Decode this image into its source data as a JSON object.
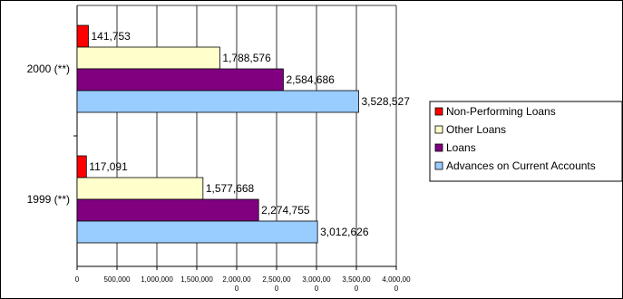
{
  "chart_data": {
    "type": "bar",
    "orientation": "horizontal",
    "categories": [
      "2000 (**)",
      "1999 (**)"
    ],
    "series": [
      {
        "name": "Non-Performing Loans",
        "color": "#ff0000",
        "values": [
          141753,
          117091
        ],
        "labels": [
          "141,753",
          "117,091"
        ]
      },
      {
        "name": "Other Loans",
        "color": "#ffffcc",
        "values": [
          1788576,
          1577668
        ],
        "labels": [
          "1,788,576",
          "1,577,668"
        ]
      },
      {
        "name": "Loans",
        "color": "#800080",
        "values": [
          2584686,
          2274755
        ],
        "labels": [
          "2,584,686",
          "2,274,755"
        ]
      },
      {
        "name": "Advances on Current Accounts",
        "color": "#99ccff",
        "values": [
          3528527,
          3012626
        ],
        "labels": [
          "3,528,527",
          "3,012,626"
        ]
      }
    ],
    "xlim": [
      0,
      4000000
    ],
    "x_ticks": [
      {
        "value": 0,
        "label": [
          "0"
        ]
      },
      {
        "value": 500000,
        "label": [
          "500,000"
        ]
      },
      {
        "value": 1000000,
        "label": [
          "1,000,000"
        ]
      },
      {
        "value": 1500000,
        "label": [
          "1,500,000"
        ]
      },
      {
        "value": 2000000,
        "label": [
          "2,000,00",
          "0"
        ]
      },
      {
        "value": 2500000,
        "label": [
          "2,500,00",
          "0"
        ]
      },
      {
        "value": 3000000,
        "label": [
          "3,000,00",
          "0"
        ]
      },
      {
        "value": 3500000,
        "label": [
          "3,500,00",
          "0"
        ]
      },
      {
        "value": 4000000,
        "label": [
          "4,000,00",
          "0"
        ]
      }
    ],
    "grid": true,
    "legend_position": "right"
  }
}
